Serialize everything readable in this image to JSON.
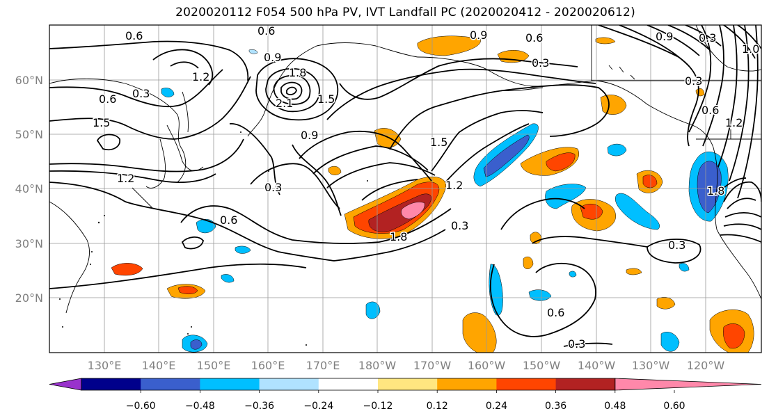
{
  "title": "2020020112 F054 500 hPa PV, IVT Landfall PC (2020020412 - 2020020612)",
  "map": {
    "lat_labels": [
      "60°N",
      "50°N",
      "40°N",
      "30°N",
      "20°N"
    ],
    "lon_labels": [
      "130°E",
      "140°E",
      "150°E",
      "160°E",
      "170°E",
      "180°W",
      "170°W",
      "160°W",
      "150°W",
      "140°W",
      "130°W",
      "120°W"
    ],
    "contour_labels": [
      "0.6",
      "0.6",
      "0.9",
      "0.9",
      "0.6",
      "1.2",
      "0.3",
      "1.8",
      "2.1",
      "1.5",
      "0.6",
      "0.3",
      "1.5",
      "1.2",
      "0.9",
      "0.3",
      "1.5",
      "0.6",
      "1.2",
      "1.8",
      "0.3",
      "0.3",
      "0.6",
      "0.3",
      "0.6",
      "0.3",
      "0.9",
      "0.3",
      "1.8",
      "1.2",
      "1.0"
    ]
  },
  "colorbar": {
    "ticks": [
      "−0.60",
      "−0.48",
      "−0.36",
      "−0.24",
      "−0.12",
      "0.12",
      "0.24",
      "0.36",
      "0.48",
      "0.60"
    ],
    "colors": [
      "#9932cc",
      "#00008b",
      "#3a5fcd",
      "#00bfff",
      "#b0e2ff",
      "#ffffff",
      "#ffe680",
      "#ffa500",
      "#ff4500",
      "#b22222",
      "#ff88aa"
    ]
  },
  "colors": {
    "neg_light": "#b0e2ff",
    "neg_mid": "#00bfff",
    "neg_dark": "#3a5fcd",
    "pos_light": "#ffe680",
    "pos_mid": "#ffa500",
    "pos_strong": "#ff4500",
    "pos_dark": "#b22222",
    "pos_max": "#ff88aa"
  }
}
